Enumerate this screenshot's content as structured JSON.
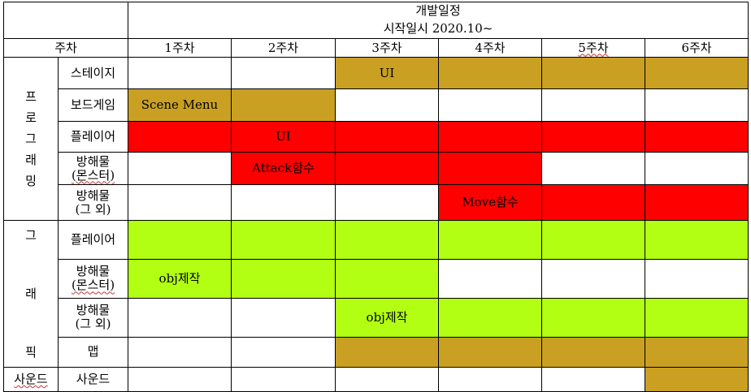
{
  "header": {
    "title": "개발일정",
    "start_date": "시작일시  2020.10~",
    "week_label": "주차",
    "weeks": [
      "1주차",
      "2주차",
      "3주차",
      "4주차",
      "5주차",
      "6주차"
    ]
  },
  "groups": {
    "programming": [
      "프",
      "로",
      "그",
      "래",
      "밍"
    ],
    "graphics": [
      "그",
      "래",
      "픽"
    ],
    "sound": "사운드"
  },
  "rows": {
    "prog_stage": "스테이지",
    "prog_board": "보드게임",
    "prog_player": "플레이어",
    "prog_obst_monster": [
      "방해물",
      "(몬스터)"
    ],
    "prog_obst_other": [
      "방해물",
      "(그 외)"
    ],
    "gfx_player": "플레이어",
    "gfx_obst_monster": [
      "방해물",
      "(몬스터)"
    ],
    "gfx_obst_other": [
      "방해물",
      "(그 외)"
    ],
    "gfx_map": "맵",
    "sound": "사운드"
  },
  "tasks": {
    "stage_ui": "UI",
    "board_scene_menu": "Scene  Menu",
    "player_ui": "UI",
    "monster_attack": "Attack함수",
    "other_move": "Move함수",
    "gfx_monster_obj": "obj제작",
    "gfx_other_obj": "obj제작"
  },
  "colors": {
    "orange": "#c9a022",
    "red": "#ff0000",
    "green": "#b2ff14"
  }
}
